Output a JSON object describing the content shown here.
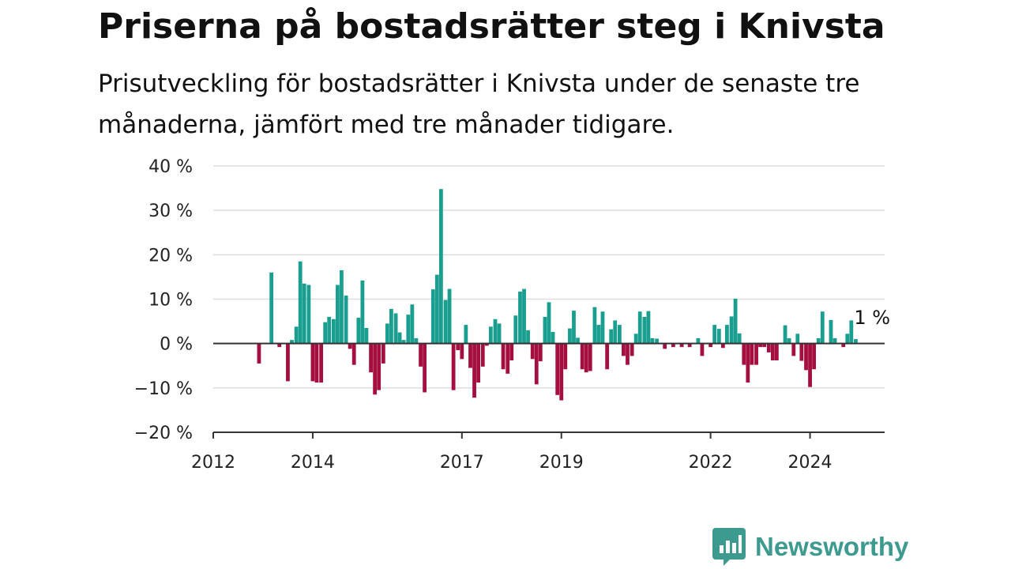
{
  "header": {
    "title": "Priserna på bostadsrätter steg i Knivsta",
    "subtitle": "Prisutveckling för bostadsrätter i Knivsta under de senaste tre månaderna, jämfört med tre månader tidigare."
  },
  "brand": {
    "name": "Newsworthy",
    "icon": "newsworthy-logo-icon",
    "color": "#3c9a8e"
  },
  "chart_data": {
    "type": "bar",
    "title": "Priserna på bostadsrätter steg i Knivsta",
    "subtitle": "Prisutveckling för bostadsrätter i Knivsta under de senaste tre månaderna, jämfört med tre månader tidigare.",
    "xlabel": "",
    "ylabel": "",
    "unit": "%",
    "ylim": [
      -20,
      40
    ],
    "yticks": [
      40,
      30,
      20,
      10,
      0,
      -10,
      -20
    ],
    "ytick_labels": [
      "40 %",
      "30 %",
      "20 %",
      "10 %",
      "0 %",
      "−10 %",
      "−20 %"
    ],
    "xlim": [
      2012.0,
      2025.5
    ],
    "xticks": [
      2012,
      2014,
      2017,
      2019,
      2022,
      2024
    ],
    "xtick_labels": [
      "2012",
      "2014",
      "2017",
      "2019",
      "2022",
      "2024"
    ],
    "grid": true,
    "positive_color": "#1a9e8f",
    "negative_color": "#a50f3f",
    "annotation": {
      "text": "1 %",
      "x": 2025.25,
      "value": 1.0
    },
    "x": [
      2012.92,
      2013.17,
      2013.33,
      2013.5,
      2013.58,
      2013.67,
      2013.75,
      2013.83,
      2013.92,
      2014.0,
      2014.08,
      2014.17,
      2014.25,
      2014.33,
      2014.42,
      2014.5,
      2014.58,
      2014.67,
      2014.75,
      2014.83,
      2014.92,
      2015.0,
      2015.08,
      2015.17,
      2015.25,
      2015.33,
      2015.42,
      2015.5,
      2015.58,
      2015.67,
      2015.75,
      2015.83,
      2015.92,
      2016.0,
      2016.08,
      2016.17,
      2016.25,
      2016.42,
      2016.5,
      2016.58,
      2016.67,
      2016.75,
      2016.83,
      2016.92,
      2017.0,
      2017.08,
      2017.17,
      2017.25,
      2017.33,
      2017.42,
      2017.5,
      2017.58,
      2017.67,
      2017.75,
      2017.83,
      2017.92,
      2018.0,
      2018.08,
      2018.17,
      2018.25,
      2018.33,
      2018.42,
      2018.5,
      2018.58,
      2018.67,
      2018.75,
      2018.83,
      2018.92,
      2019.0,
      2019.08,
      2019.17,
      2019.25,
      2019.33,
      2019.42,
      2019.5,
      2019.58,
      2019.67,
      2019.75,
      2019.83,
      2019.92,
      2020.0,
      2020.08,
      2020.17,
      2020.25,
      2020.33,
      2020.42,
      2020.5,
      2020.58,
      2020.67,
      2020.75,
      2020.83,
      2020.92,
      2021.08,
      2021.25,
      2021.42,
      2021.58,
      2021.75,
      2021.83,
      2022.0,
      2022.08,
      2022.17,
      2022.25,
      2022.33,
      2022.42,
      2022.5,
      2022.58,
      2022.67,
      2022.75,
      2022.83,
      2022.92,
      2023.0,
      2023.08,
      2023.17,
      2023.25,
      2023.33,
      2023.5,
      2023.58,
      2023.67,
      2023.75,
      2023.83,
      2023.92,
      2024.0,
      2024.08,
      2024.17,
      2024.25,
      2024.42,
      2024.5,
      2024.67,
      2024.75,
      2024.83,
      2024.92
    ],
    "values": [
      -4.5,
      16,
      -0.8,
      -8.5,
      0.8,
      3.8,
      18.5,
      13.5,
      13.2,
      -8.5,
      -8.8,
      -8.8,
      4.8,
      6,
      5.5,
      13.2,
      16.5,
      10.8,
      -1.2,
      -4.8,
      5.8,
      14.2,
      3.5,
      -6.5,
      -11.5,
      -10.5,
      -4.5,
      4.5,
      7.8,
      6.8,
      2.5,
      0.8,
      6.5,
      8.8,
      1.2,
      -5.2,
      -11,
      12.2,
      15.5,
      34.8,
      9.8,
      12.3,
      -10.5,
      -1.5,
      -3.5,
      4.2,
      -5.5,
      -12.2,
      -8.8,
      -5.2,
      -0.5,
      3.8,
      5.5,
      4.5,
      -5.8,
      -6.8,
      -3.8,
      6.3,
      11.7,
      12.3,
      3,
      -3.5,
      -9.2,
      -4,
      6,
      9.3,
      2.6,
      -11.6,
      -12.8,
      -5.8,
      3.4,
      7.4,
      1.3,
      -5.8,
      -6.5,
      -6.2,
      8.2,
      4.2,
      7.2,
      -5.8,
      3.2,
      5.2,
      4.2,
      -2.8,
      -4.8,
      -2.8,
      2.2,
      7.2,
      6,
      7.3,
      1.2,
      1.1,
      -1.2,
      -0.8,
      -0.8,
      -0.8,
      1.2,
      -2.8,
      -0.8,
      4.2,
      3.3,
      -1,
      4.2,
      6.1,
      10.1,
      2.3,
      -4.8,
      -8.8,
      -4.8,
      -4.8,
      -0.8,
      -0.8,
      -2,
      -3.8,
      -3.8,
      4.1,
      1.2,
      -2.8,
      2.2,
      -3.9,
      -6,
      -9.8,
      -5.8,
      1.2,
      7.2,
      5.3,
      1.2,
      -0.8,
      2.2,
      5.2,
      1
    ]
  }
}
